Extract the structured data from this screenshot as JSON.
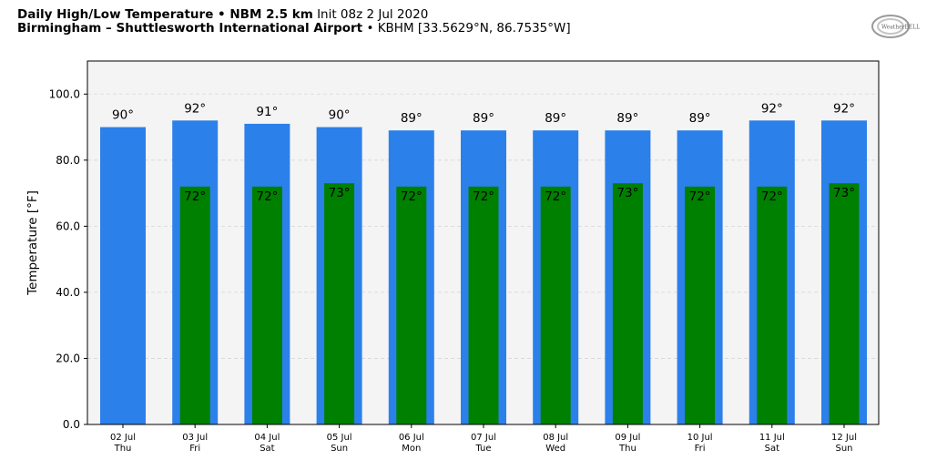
{
  "header": {
    "title_bold": "Daily High/Low Temperature • NBM 2.5 km",
    "init": "Init 08z 2 Jul 2020",
    "location_bold": "Birmingham – Shuttlesworth International Airport",
    "location_detail": "• KBHM [33.5629°N, 86.7535°W]"
  },
  "logo": {
    "text": "WeatherBELL",
    "icon": "weatherbell-logo"
  },
  "chart_data": {
    "type": "bar",
    "ylabel": "Temperature [°F]",
    "ylim": [
      0,
      110
    ],
    "yticks": [
      0,
      20,
      40,
      60,
      80,
      100
    ],
    "ytick_labels": [
      "0.0",
      "20.0",
      "40.0",
      "60.0",
      "80.0",
      "100.0"
    ],
    "grid": true,
    "categories": [
      "02 Jul",
      "03 Jul",
      "04 Jul",
      "05 Jul",
      "06 Jul",
      "07 Jul",
      "08 Jul",
      "09 Jul",
      "10 Jul",
      "11 Jul",
      "12 Jul"
    ],
    "weekdays": [
      "Thu",
      "Fri",
      "Sat",
      "Sun",
      "Mon",
      "Tue",
      "Wed",
      "Thu",
      "Fri",
      "Sat",
      "Sun"
    ],
    "series": [
      {
        "role": "high",
        "color": "#2c80ea",
        "values": [
          90,
          92,
          91,
          90,
          89,
          89,
          89,
          89,
          89,
          92,
          92
        ],
        "labels": [
          "90°",
          "92°",
          "91°",
          "90°",
          "89°",
          "89°",
          "89°",
          "89°",
          "89°",
          "92°",
          "92°"
        ]
      },
      {
        "role": "low",
        "color": "#008000",
        "values": [
          null,
          72,
          72,
          73,
          72,
          72,
          72,
          73,
          72,
          72,
          73
        ],
        "labels": [
          "",
          "72°",
          "72°",
          "73°",
          "72°",
          "72°",
          "72°",
          "73°",
          "72°",
          "72°",
          "73°"
        ]
      }
    ],
    "colors": {
      "plot_bg": "#f4f4f4",
      "grid": "#d6d6d6"
    }
  }
}
